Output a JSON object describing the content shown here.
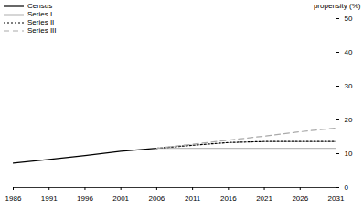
{
  "chart_data": {
    "type": "line",
    "y_label": "propensity (%)",
    "x": [
      1986,
      1991,
      1996,
      2001,
      2006,
      2011,
      2016,
      2021,
      2026,
      2031
    ],
    "series": [
      {
        "name": "Census",
        "color": "#000000",
        "line_style": "solid",
        "values": [
          7.2,
          8.3,
          9.4,
          10.7,
          11.6,
          null,
          null,
          null,
          null,
          null
        ]
      },
      {
        "name": "Series I",
        "color": "#bbbbbb",
        "line_style": "solid",
        "values": [
          null,
          null,
          null,
          null,
          11.6,
          11.6,
          11.6,
          11.6,
          11.6,
          11.6
        ]
      },
      {
        "name": "Series II",
        "color": "#000000",
        "line_style": "dotted",
        "values": [
          null,
          null,
          null,
          null,
          11.6,
          12.5,
          13.3,
          13.6,
          13.6,
          13.6
        ]
      },
      {
        "name": "Series III",
        "color": "#aaaaaa",
        "line_style": "dashed",
        "values": [
          null,
          null,
          null,
          null,
          11.6,
          12.8,
          14.0,
          15.2,
          16.5,
          17.6
        ]
      }
    ],
    "xlim": [
      1986,
      2031
    ],
    "xticks": [
      1986,
      1991,
      1996,
      2001,
      2006,
      2011,
      2016,
      2021,
      2026,
      2031
    ],
    "ylim": [
      0,
      50
    ],
    "yticks": [
      0,
      10,
      20,
      30,
      40,
      50
    ],
    "grid": false,
    "legend": "top-left"
  }
}
